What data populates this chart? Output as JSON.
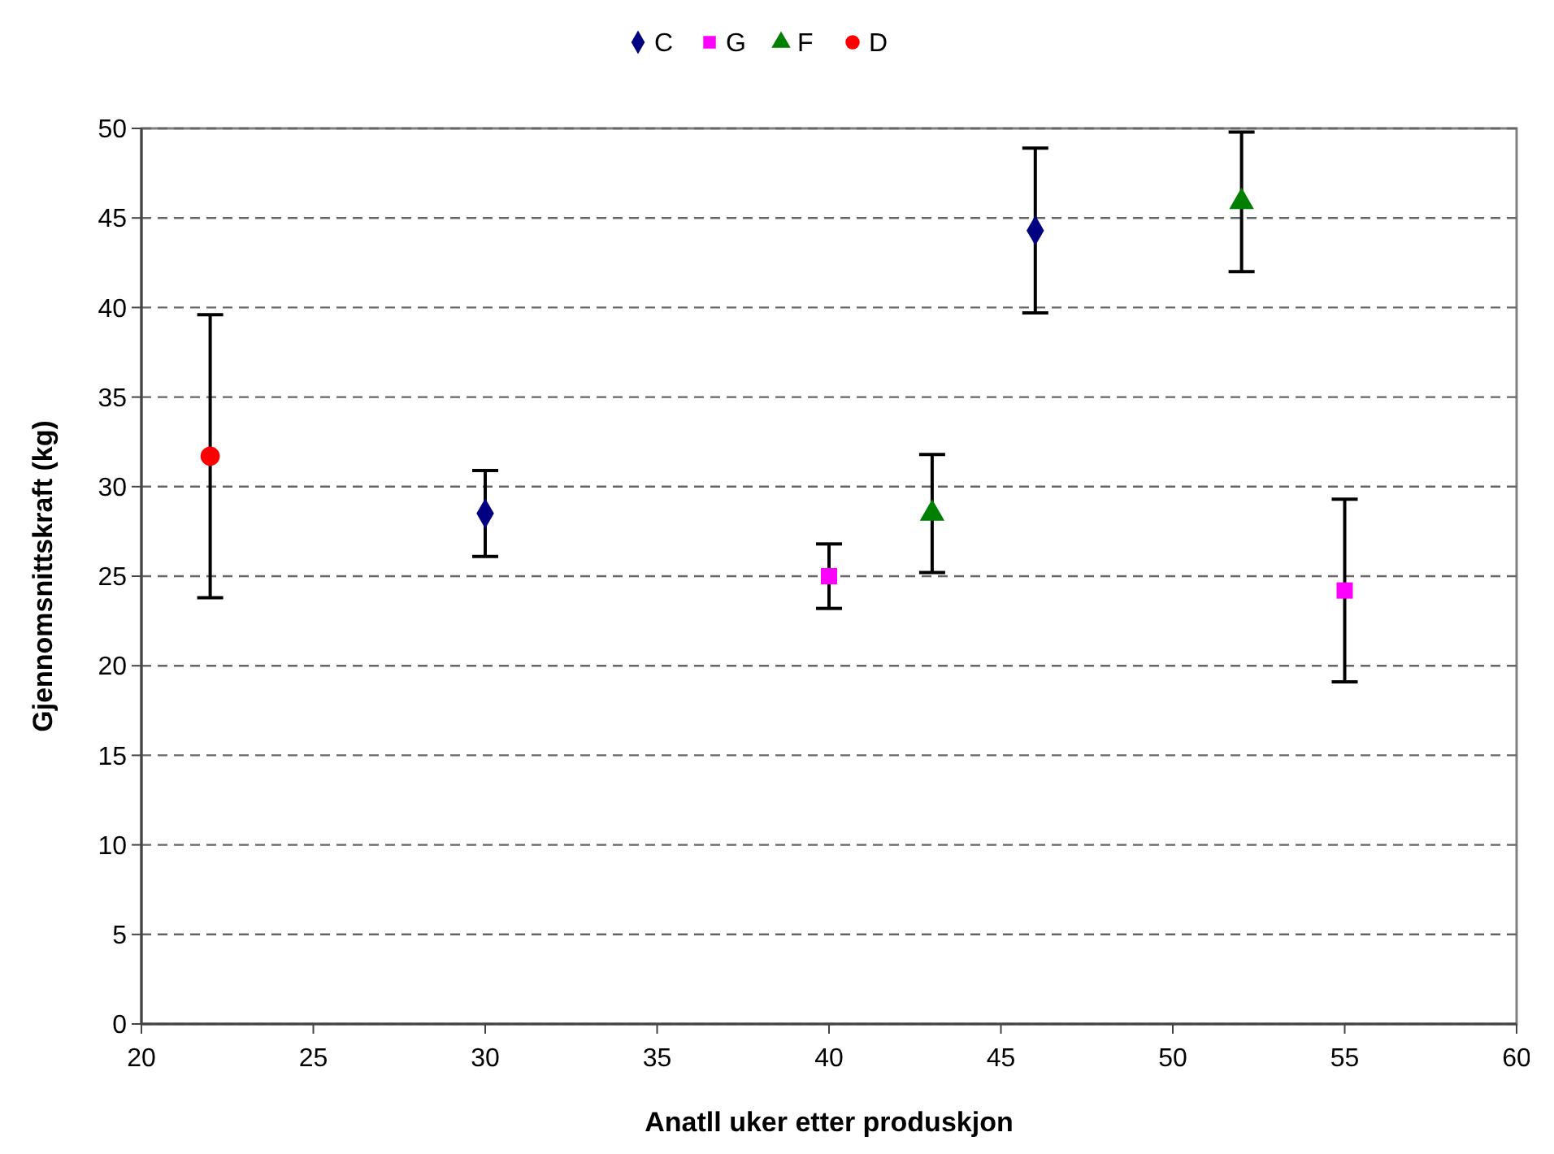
{
  "chart_data": {
    "type": "scatter",
    "xlabel": "Anatll uker etter produskjon",
    "ylabel": "Gjennomsnittskraft (kg)",
    "xlim": [
      20,
      60
    ],
    "xticks": [
      20,
      25,
      30,
      35,
      40,
      45,
      50,
      55,
      60
    ],
    "ylim": [
      0,
      50
    ],
    "yticks": [
      0,
      5,
      10,
      15,
      20,
      25,
      30,
      35,
      40,
      45,
      50
    ],
    "grid": "y",
    "legend": "top",
    "series": [
      {
        "name": "C",
        "color": "#000080",
        "marker": "diamond",
        "x": [
          30,
          46
        ],
        "values": [
          28.5,
          44.3
        ],
        "errors": [
          2.4,
          4.6
        ]
      },
      {
        "name": "G",
        "color": "#ff00ff",
        "marker": "square",
        "x": [
          40,
          55
        ],
        "values": [
          25.0,
          24.2
        ],
        "errors": [
          1.8,
          5.1
        ]
      },
      {
        "name": "F",
        "color": "#008000",
        "marker": "triangle",
        "x": [
          43,
          52
        ],
        "values": [
          28.5,
          45.9
        ],
        "errors": [
          3.3,
          3.9
        ]
      },
      {
        "name": "D",
        "color": "#ff0000",
        "marker": "circle",
        "x": [
          22
        ],
        "values": [
          31.7
        ],
        "errors": [
          7.9
        ]
      }
    ]
  }
}
